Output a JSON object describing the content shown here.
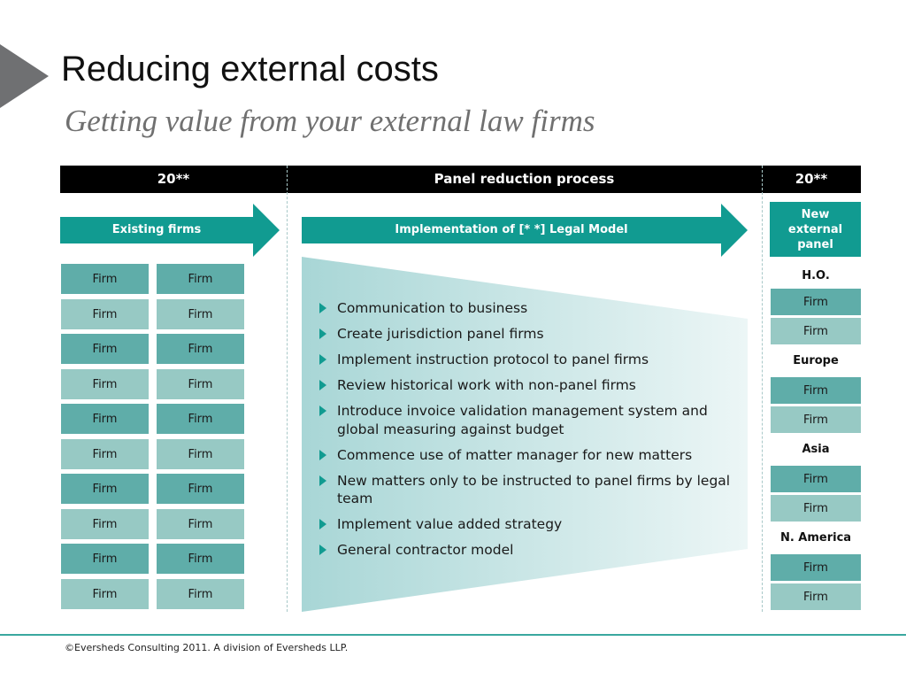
{
  "title": "Reducing external costs",
  "subtitle": "Getting value from your external law firms",
  "header": {
    "left": "20**",
    "middle": "Panel reduction process",
    "right": "20**"
  },
  "arrows": {
    "existing": "Existing firms",
    "implementation": "Implementation of [*  *] Legal Model"
  },
  "new_panel": "New\nexternal\npanel",
  "existing_firms": {
    "col1": [
      "Firm",
      "Firm",
      "Firm",
      "Firm",
      "Firm",
      "Firm",
      "Firm",
      "Firm",
      "Firm",
      "Firm"
    ],
    "col2": [
      "Firm",
      "Firm",
      "Firm",
      "Firm",
      "Firm",
      "Firm",
      "Firm",
      "Firm",
      "Firm",
      "Firm"
    ]
  },
  "bullets": [
    "Communication to business",
    "Create jurisdiction panel firms",
    "Implement instruction protocol to panel firms",
    "Review historical work with non-panel firms",
    "Introduce invoice validation management system and global measuring against budget",
    "Commence use of matter manager for new matters",
    "New matters only to be instructed to panel firms by legal team",
    "Implement value added strategy",
    "General contractor model"
  ],
  "regions": [
    {
      "name": "H.O.",
      "firms": [
        "Firm",
        "Firm"
      ]
    },
    {
      "name": "Europe",
      "firms": [
        "Firm",
        "Firm"
      ]
    },
    {
      "name": "Asia",
      "firms": [
        "Firm",
        "Firm"
      ]
    },
    {
      "name": "N. America",
      "firms": [
        "Firm",
        "Firm"
      ]
    }
  ],
  "footer": "©Eversheds Consulting 2011. A division of Eversheds LLP.",
  "colors": {
    "accent": "#119b91",
    "firm_dark": "#5fada9",
    "firm_light": "#97c9c4",
    "header_bg": "#000000"
  }
}
